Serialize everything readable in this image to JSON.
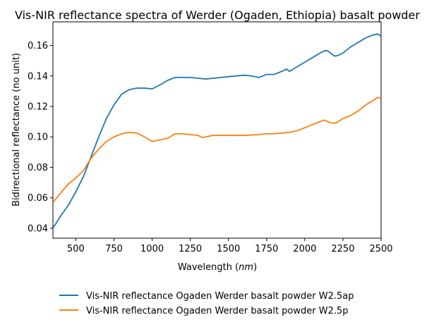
{
  "chart_data": {
    "type": "line",
    "title": "Vis-NIR reflectance spectra of Werder (Ogaden, Ethiopia) basalt powder",
    "xlabel": "Wavelength (",
    "xlabel_unit": "nm",
    "xlabel_close": ")",
    "ylabel": "Bidirectional reflectance (no unit)",
    "xlim": [
      350,
      2500
    ],
    "ylim": [
      0.0335,
      0.1755
    ],
    "xticks": [
      500,
      750,
      1000,
      1250,
      1500,
      1750,
      2000,
      2250,
      2500
    ],
    "yticks": [
      0.04,
      0.06,
      0.08,
      0.1,
      0.12,
      0.14,
      0.16
    ],
    "ytick_labels": [
      "0.04",
      "0.06",
      "0.08",
      "0.10",
      "0.12",
      "0.14",
      "0.16"
    ],
    "grid": false,
    "legend_position": "below",
    "series": [
      {
        "name": "Vis-NIR reflectance Ogaden Werder basalt powder W2.5ap",
        "color": "#1f77b4",
        "x": [
          350,
          400,
          450,
          500,
          550,
          600,
          650,
          700,
          750,
          800,
          850,
          900,
          950,
          1000,
          1050,
          1100,
          1150,
          1200,
          1250,
          1300,
          1350,
          1400,
          1500,
          1600,
          1650,
          1700,
          1750,
          1800,
          1850,
          1880,
          1900,
          1950,
          2000,
          2050,
          2100,
          2130,
          2150,
          2180,
          2200,
          2220,
          2250,
          2300,
          2350,
          2400,
          2450,
          2480,
          2500
        ],
        "y": [
          0.04,
          0.048,
          0.055,
          0.064,
          0.074,
          0.087,
          0.1,
          0.112,
          0.121,
          0.128,
          0.131,
          0.132,
          0.132,
          0.1315,
          0.134,
          0.137,
          0.139,
          0.139,
          0.139,
          0.1385,
          0.138,
          0.1385,
          0.1395,
          0.1405,
          0.14,
          0.139,
          0.141,
          0.141,
          0.143,
          0.1445,
          0.143,
          0.146,
          0.149,
          0.152,
          0.155,
          0.1565,
          0.1565,
          0.154,
          0.153,
          0.1535,
          0.155,
          0.159,
          0.162,
          0.165,
          0.167,
          0.1675,
          0.166
        ]
      },
      {
        "name": "Vis-NIR reflectance Ogaden Werder basalt powder W2.5p",
        "color": "#ff7f0e",
        "x": [
          350,
          400,
          450,
          500,
          550,
          600,
          650,
          700,
          750,
          800,
          850,
          900,
          950,
          1000,
          1050,
          1100,
          1150,
          1200,
          1250,
          1300,
          1330,
          1350,
          1400,
          1500,
          1600,
          1700,
          1750,
          1800,
          1850,
          1900,
          1950,
          2000,
          2050,
          2100,
          2130,
          2150,
          2180,
          2200,
          2220,
          2250,
          2300,
          2350,
          2400,
          2450,
          2480,
          2500
        ],
        "y": [
          0.057,
          0.063,
          0.069,
          0.073,
          0.078,
          0.086,
          0.092,
          0.097,
          0.1,
          0.102,
          0.103,
          0.1025,
          0.1,
          0.097,
          0.098,
          0.099,
          0.102,
          0.102,
          0.1015,
          0.101,
          0.0995,
          0.1,
          0.101,
          0.101,
          0.101,
          0.1015,
          0.102,
          0.102,
          0.1025,
          0.103,
          0.104,
          0.106,
          0.108,
          0.11,
          0.111,
          0.11,
          0.109,
          0.109,
          0.11,
          0.112,
          0.114,
          0.117,
          0.121,
          0.124,
          0.126,
          0.125
        ]
      }
    ]
  }
}
